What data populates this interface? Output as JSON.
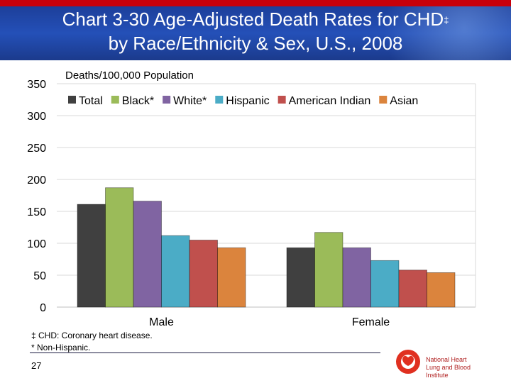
{
  "header": {
    "title_line1": "Chart 3-30  Age-Adjusted Death Rates for CHD",
    "title_mark": "‡",
    "title_line2": "by Race/Ethnicity & Sex, U.S., 2008"
  },
  "footnotes": [
    "‡ CHD: Coronary heart disease.",
    "* Non-Hispanic."
  ],
  "page_number": "27",
  "logo": {
    "line1": "National Heart",
    "line2": "Lung and Blood Institute"
  },
  "chart_data": {
    "type": "bar",
    "title": "",
    "ylabel": "Deaths/100,000 Population",
    "xlabel": "",
    "ylim": [
      0,
      350
    ],
    "yticks": [
      0,
      50,
      100,
      150,
      200,
      250,
      300,
      350
    ],
    "grid": true,
    "legend_position": "top",
    "categories": [
      "Male",
      "Female"
    ],
    "series": [
      {
        "name": "Total",
        "color": "#404040",
        "values": [
          161,
          93
        ]
      },
      {
        "name": "Black*",
        "color": "#9bbb59",
        "values": [
          187,
          117
        ]
      },
      {
        "name": "White*",
        "color": "#8064a2",
        "values": [
          166,
          93
        ]
      },
      {
        "name": "Hispanic",
        "color": "#4bacc6",
        "values": [
          112,
          73
        ]
      },
      {
        "name": "American Indian",
        "color": "#c0504d",
        "values": [
          105,
          58
        ]
      },
      {
        "name": "Asian",
        "color": "#db843d",
        "values": [
          93,
          54
        ]
      }
    ]
  }
}
